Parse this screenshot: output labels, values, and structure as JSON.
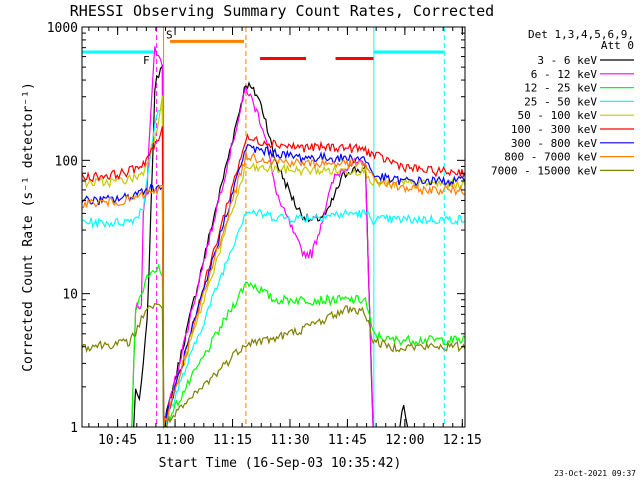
{
  "chart_data": {
    "type": "line",
    "title": "RHESSI Observing Summary Count Rates, Corrected",
    "xlabel": "Start Time (16-Sep-03 10:35:42)",
    "ylabel": "Corrected Count Rate (s⁻¹ detector⁻¹)",
    "yscale": "log",
    "ylim": [
      1,
      1000
    ],
    "xlim_minutes": [
      0,
      100
    ],
    "x_ticks": [
      {
        "m": 9.3,
        "label": "10:45"
      },
      {
        "m": 24.3,
        "label": "11:00"
      },
      {
        "m": 39.3,
        "label": "11:15"
      },
      {
        "m": 54.3,
        "label": "11:30"
      },
      {
        "m": 69.3,
        "label": "11:45"
      },
      {
        "m": 84.3,
        "label": "12:00"
      },
      {
        "m": 99.3,
        "label": "12:15"
      }
    ],
    "y_ticks": [
      {
        "v": 1,
        "label": "1"
      },
      {
        "v": 10,
        "label": "10"
      },
      {
        "v": 100,
        "label": "100"
      },
      {
        "v": 1000,
        "label": "1000"
      }
    ],
    "legend_header": [
      "Det 1,3,4,5,6,9,",
      "Att 0"
    ],
    "series": [
      {
        "name": "3 - 6 keV",
        "color": "#000000",
        "pts": [
          [
            0,
            1
          ],
          [
            13.5,
            1
          ],
          [
            14,
            2
          ],
          [
            15,
            1.5
          ],
          [
            16,
            3
          ],
          [
            17,
            6
          ],
          [
            18,
            40
          ],
          [
            19,
            350
          ],
          [
            20,
            450
          ],
          [
            21,
            550
          ],
          [
            21.3,
            1
          ],
          [
            42.8,
            380
          ],
          [
            44,
            350
          ],
          [
            46,
            300
          ],
          [
            48,
            200
          ],
          [
            50,
            110
          ],
          [
            52,
            80
          ],
          [
            54,
            60
          ],
          [
            56,
            45
          ],
          [
            58,
            38
          ],
          [
            60,
            35
          ],
          [
            62,
            37
          ],
          [
            64,
            40
          ],
          [
            66,
            55
          ],
          [
            68,
            75
          ],
          [
            70,
            85
          ],
          [
            72,
            85
          ],
          [
            74,
            85
          ],
          [
            76,
            1
          ],
          [
            83,
            1
          ],
          [
            84,
            1.5
          ],
          [
            85,
            1
          ],
          [
            100,
            1
          ]
        ]
      },
      {
        "name": "6 - 12 keV",
        "color": "#ff00ff",
        "pts": [
          [
            0,
            1
          ],
          [
            13,
            1
          ],
          [
            14,
            8
          ],
          [
            15.5,
            8
          ],
          [
            16,
            40
          ],
          [
            17,
            60
          ],
          [
            18,
            250
          ],
          [
            19,
            700
          ],
          [
            20,
            600
          ],
          [
            21,
            500
          ],
          [
            21.3,
            1
          ],
          [
            42.8,
            350
          ],
          [
            44,
            300
          ],
          [
            46,
            220
          ],
          [
            48,
            150
          ],
          [
            50,
            70
          ],
          [
            52,
            45
          ],
          [
            54,
            35
          ],
          [
            56,
            25
          ],
          [
            58,
            20
          ],
          [
            60,
            20
          ],
          [
            62,
            30
          ],
          [
            64,
            50
          ],
          [
            66,
            75
          ],
          [
            68,
            85
          ],
          [
            70,
            95
          ],
          [
            72,
            95
          ],
          [
            74,
            90
          ],
          [
            76,
            1
          ],
          [
            100,
            1
          ]
        ]
      },
      {
        "name": "12 - 25 keV",
        "color": "#00ff00",
        "pts": [
          [
            0,
            1
          ],
          [
            13,
            1
          ],
          [
            14,
            8
          ],
          [
            15,
            9
          ],
          [
            16,
            10
          ],
          [
            17,
            14
          ],
          [
            18,
            15
          ],
          [
            19,
            14
          ],
          [
            20,
            16
          ],
          [
            21,
            14
          ],
          [
            21.3,
            1
          ],
          [
            42.8,
            12
          ],
          [
            44,
            12
          ],
          [
            46,
            11
          ],
          [
            48,
            10
          ],
          [
            50,
            9
          ],
          [
            52,
            9
          ],
          [
            54,
            9
          ],
          [
            56,
            9
          ],
          [
            58,
            9
          ],
          [
            60,
            9
          ],
          [
            62,
            9
          ],
          [
            64,
            9
          ],
          [
            66,
            9
          ],
          [
            68,
            9
          ],
          [
            70,
            9
          ],
          [
            72,
            9
          ],
          [
            74,
            9
          ],
          [
            76,
            5
          ],
          [
            80,
            4.5
          ],
          [
            84,
            4.5
          ],
          [
            88,
            4.5
          ],
          [
            92,
            4.5
          ],
          [
            96,
            4.5
          ],
          [
            100,
            4.5
          ]
        ]
      },
      {
        "name": "25 - 50 keV",
        "color": "#00ffff",
        "pts": [
          [
            0,
            35
          ],
          [
            4,
            34
          ],
          [
            8,
            34
          ],
          [
            12,
            35
          ],
          [
            14,
            37
          ],
          [
            16,
            45
          ],
          [
            18,
            120
          ],
          [
            19,
            180
          ],
          [
            20,
            230
          ],
          [
            21,
            250
          ],
          [
            21.3,
            1
          ],
          [
            42.8,
            42
          ],
          [
            46,
            40
          ],
          [
            50,
            38
          ],
          [
            54,
            37
          ],
          [
            58,
            37
          ],
          [
            62,
            38
          ],
          [
            66,
            39
          ],
          [
            70,
            40
          ],
          [
            74,
            40
          ],
          [
            76,
            36
          ],
          [
            80,
            36
          ],
          [
            84,
            36
          ],
          [
            88,
            36
          ],
          [
            92,
            36
          ],
          [
            96,
            36
          ],
          [
            100,
            36
          ]
        ]
      },
      {
        "name": "50 - 100 keV",
        "color": "#c8c800",
        "pts": [
          [
            0,
            68
          ],
          [
            4,
            68
          ],
          [
            8,
            69
          ],
          [
            12,
            72
          ],
          [
            14,
            75
          ],
          [
            16,
            80
          ],
          [
            18,
            120
          ],
          [
            20,
            200
          ],
          [
            21,
            330
          ],
          [
            21.3,
            1
          ],
          [
            42.8,
            88
          ],
          [
            46,
            87
          ],
          [
            50,
            86
          ],
          [
            54,
            85
          ],
          [
            58,
            84
          ],
          [
            62,
            84
          ],
          [
            66,
            84
          ],
          [
            70,
            84
          ],
          [
            74,
            84
          ],
          [
            76,
            68
          ],
          [
            80,
            67
          ],
          [
            84,
            67
          ],
          [
            88,
            67
          ],
          [
            92,
            67
          ],
          [
            96,
            66
          ],
          [
            100,
            66
          ]
        ]
      },
      {
        "name": "100 - 300 keV",
        "color": "#ff0000",
        "pts": [
          [
            0,
            75
          ],
          [
            4,
            76
          ],
          [
            8,
            78
          ],
          [
            12,
            82
          ],
          [
            14,
            88
          ],
          [
            16,
            95
          ],
          [
            18,
            115
          ],
          [
            20,
            140
          ],
          [
            21,
            180
          ],
          [
            21.3,
            1
          ],
          [
            42.8,
            145
          ],
          [
            46,
            140
          ],
          [
            50,
            135
          ],
          [
            54,
            128
          ],
          [
            58,
            125
          ],
          [
            62,
            125
          ],
          [
            66,
            126
          ],
          [
            70,
            124
          ],
          [
            74,
            120
          ],
          [
            76,
            110
          ],
          [
            80,
            100
          ],
          [
            84,
            90
          ],
          [
            88,
            85
          ],
          [
            92,
            83
          ],
          [
            96,
            82
          ],
          [
            100,
            82
          ]
        ]
      },
      {
        "name": "300 - 800 keV",
        "color": "#0000ff",
        "pts": [
          [
            0,
            50
          ],
          [
            4,
            50
          ],
          [
            8,
            51
          ],
          [
            12,
            53
          ],
          [
            14,
            56
          ],
          [
            16,
            60
          ],
          [
            18,
            62
          ],
          [
            20,
            63
          ],
          [
            21,
            64
          ],
          [
            21.3,
            1
          ],
          [
            42.8,
            125
          ],
          [
            46,
            120
          ],
          [
            50,
            115
          ],
          [
            54,
            108
          ],
          [
            58,
            105
          ],
          [
            62,
            105
          ],
          [
            66,
            104
          ],
          [
            70,
            104
          ],
          [
            74,
            103
          ],
          [
            76,
            78
          ],
          [
            80,
            72
          ],
          [
            84,
            70
          ],
          [
            88,
            70
          ],
          [
            92,
            70
          ],
          [
            96,
            70
          ],
          [
            100,
            70
          ]
        ]
      },
      {
        "name": "800 - 7000 keV",
        "color": "#ff8000",
        "pts": [
          [
            0,
            48
          ],
          [
            4,
            48
          ],
          [
            8,
            49
          ],
          [
            12,
            50
          ],
          [
            14,
            52
          ],
          [
            16,
            55
          ],
          [
            18,
            58
          ],
          [
            20,
            60
          ],
          [
            21,
            62
          ],
          [
            21.3,
            1
          ],
          [
            42.8,
            108
          ],
          [
            46,
            104
          ],
          [
            50,
            100
          ],
          [
            54,
            97
          ],
          [
            58,
            95
          ],
          [
            62,
            95
          ],
          [
            66,
            95
          ],
          [
            70,
            94
          ],
          [
            74,
            94
          ],
          [
            76,
            72
          ],
          [
            80,
            66
          ],
          [
            84,
            62
          ],
          [
            88,
            60
          ],
          [
            92,
            60
          ],
          [
            96,
            60
          ],
          [
            100,
            60
          ]
        ]
      },
      {
        "name": "7000 - 15000 keV",
        "color": "#808000",
        "pts": [
          [
            0,
            4
          ],
          [
            4,
            4.1
          ],
          [
            8,
            4.2
          ],
          [
            12,
            4.3
          ],
          [
            14,
            5
          ],
          [
            15,
            6
          ],
          [
            16,
            7
          ],
          [
            17,
            8
          ],
          [
            18,
            8
          ],
          [
            19,
            8
          ],
          [
            20,
            8
          ],
          [
            21,
            8
          ],
          [
            21.3,
            1
          ],
          [
            42.8,
            4.3
          ],
          [
            46,
            4.4
          ],
          [
            50,
            4.6
          ],
          [
            54,
            5
          ],
          [
            58,
            5.5
          ],
          [
            62,
            6.2
          ],
          [
            66,
            7
          ],
          [
            70,
            7.8
          ],
          [
            74,
            7.2
          ],
          [
            76,
            4.5
          ],
          [
            80,
            4
          ],
          [
            84,
            4
          ],
          [
            88,
            4
          ],
          [
            92,
            4
          ],
          [
            96,
            4
          ],
          [
            100,
            4
          ]
        ]
      }
    ],
    "attenuator_lines": [
      {
        "m": 0,
        "color": "#00ffff",
        "style": "solid"
      },
      {
        "m": 19.5,
        "color": "#ff00ff",
        "style": "dash"
      },
      {
        "m": 21.3,
        "color": "#ff8000",
        "style": "solid"
      },
      {
        "m": 42.8,
        "color": "#ff8000",
        "style": "dash"
      },
      {
        "m": 76.2,
        "color": "#00ffff",
        "style": "solid"
      },
      {
        "m": 94.6,
        "color": "#00ffff",
        "style": "dash"
      }
    ],
    "flag_bars": [
      {
        "m0": 0,
        "m1": 18.7,
        "v": 650,
        "color": "#00ffff"
      },
      {
        "m0": 23,
        "m1": 42.3,
        "v": 780,
        "color": "#ff8000"
      },
      {
        "m0": 46.5,
        "m1": 58.5,
        "v": 580,
        "color": "#ff0000"
      },
      {
        "m0": 66.2,
        "m1": 76.2,
        "v": 580,
        "color": "#ff0000"
      },
      {
        "m0": 76.2,
        "m1": 94.6,
        "v": 650,
        "color": "#00ffff"
      }
    ],
    "annotations": [
      {
        "text": "F",
        "m": 16.8,
        "v": 530,
        "color": "#ff0000"
      },
      {
        "text": "S",
        "m": 22.8,
        "v": 820,
        "color": "#ff8000"
      }
    ],
    "footer_stamp": "23-Oct-2021 09:37"
  }
}
